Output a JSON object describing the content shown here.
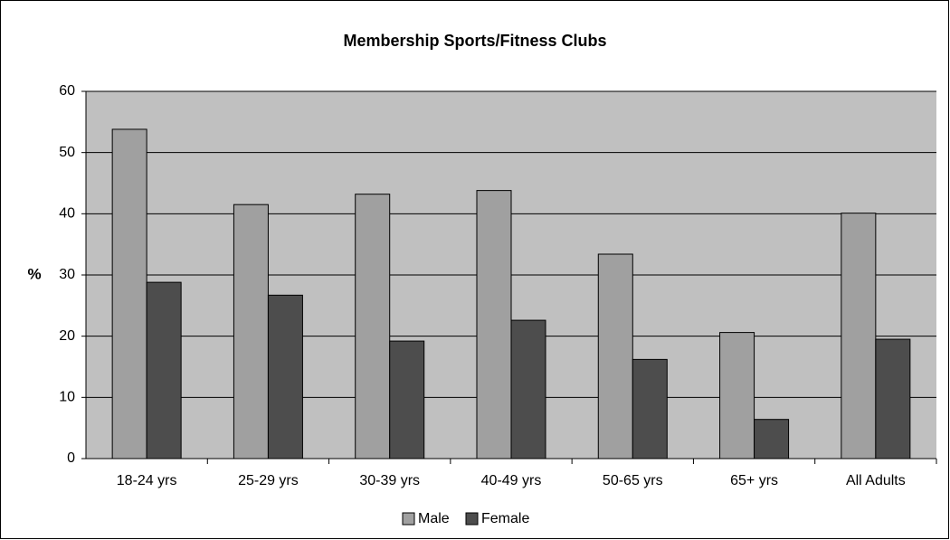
{
  "chart_data": {
    "type": "bar",
    "title": "Membership Sports/Fitness Clubs",
    "y_label": "%",
    "categories": [
      "18-24 yrs",
      "25-29 yrs",
      "30-39 yrs",
      "40-49 yrs",
      "50-65 yrs",
      "65+ yrs",
      "All Adults"
    ],
    "series": [
      {
        "name": "Male",
        "color": "#a0a0a0",
        "values": [
          53.8,
          41.5,
          43.2,
          43.8,
          33.4,
          20.6,
          40.1
        ]
      },
      {
        "name": "Female",
        "color": "#4d4d4d",
        "values": [
          28.8,
          26.7,
          19.2,
          22.6,
          16.2,
          6.4,
          19.5
        ]
      }
    ],
    "ylim": [
      0,
      60
    ],
    "yticks": [
      0,
      10,
      20,
      30,
      40,
      50,
      60
    ],
    "grid": true,
    "legend": "bottom"
  }
}
